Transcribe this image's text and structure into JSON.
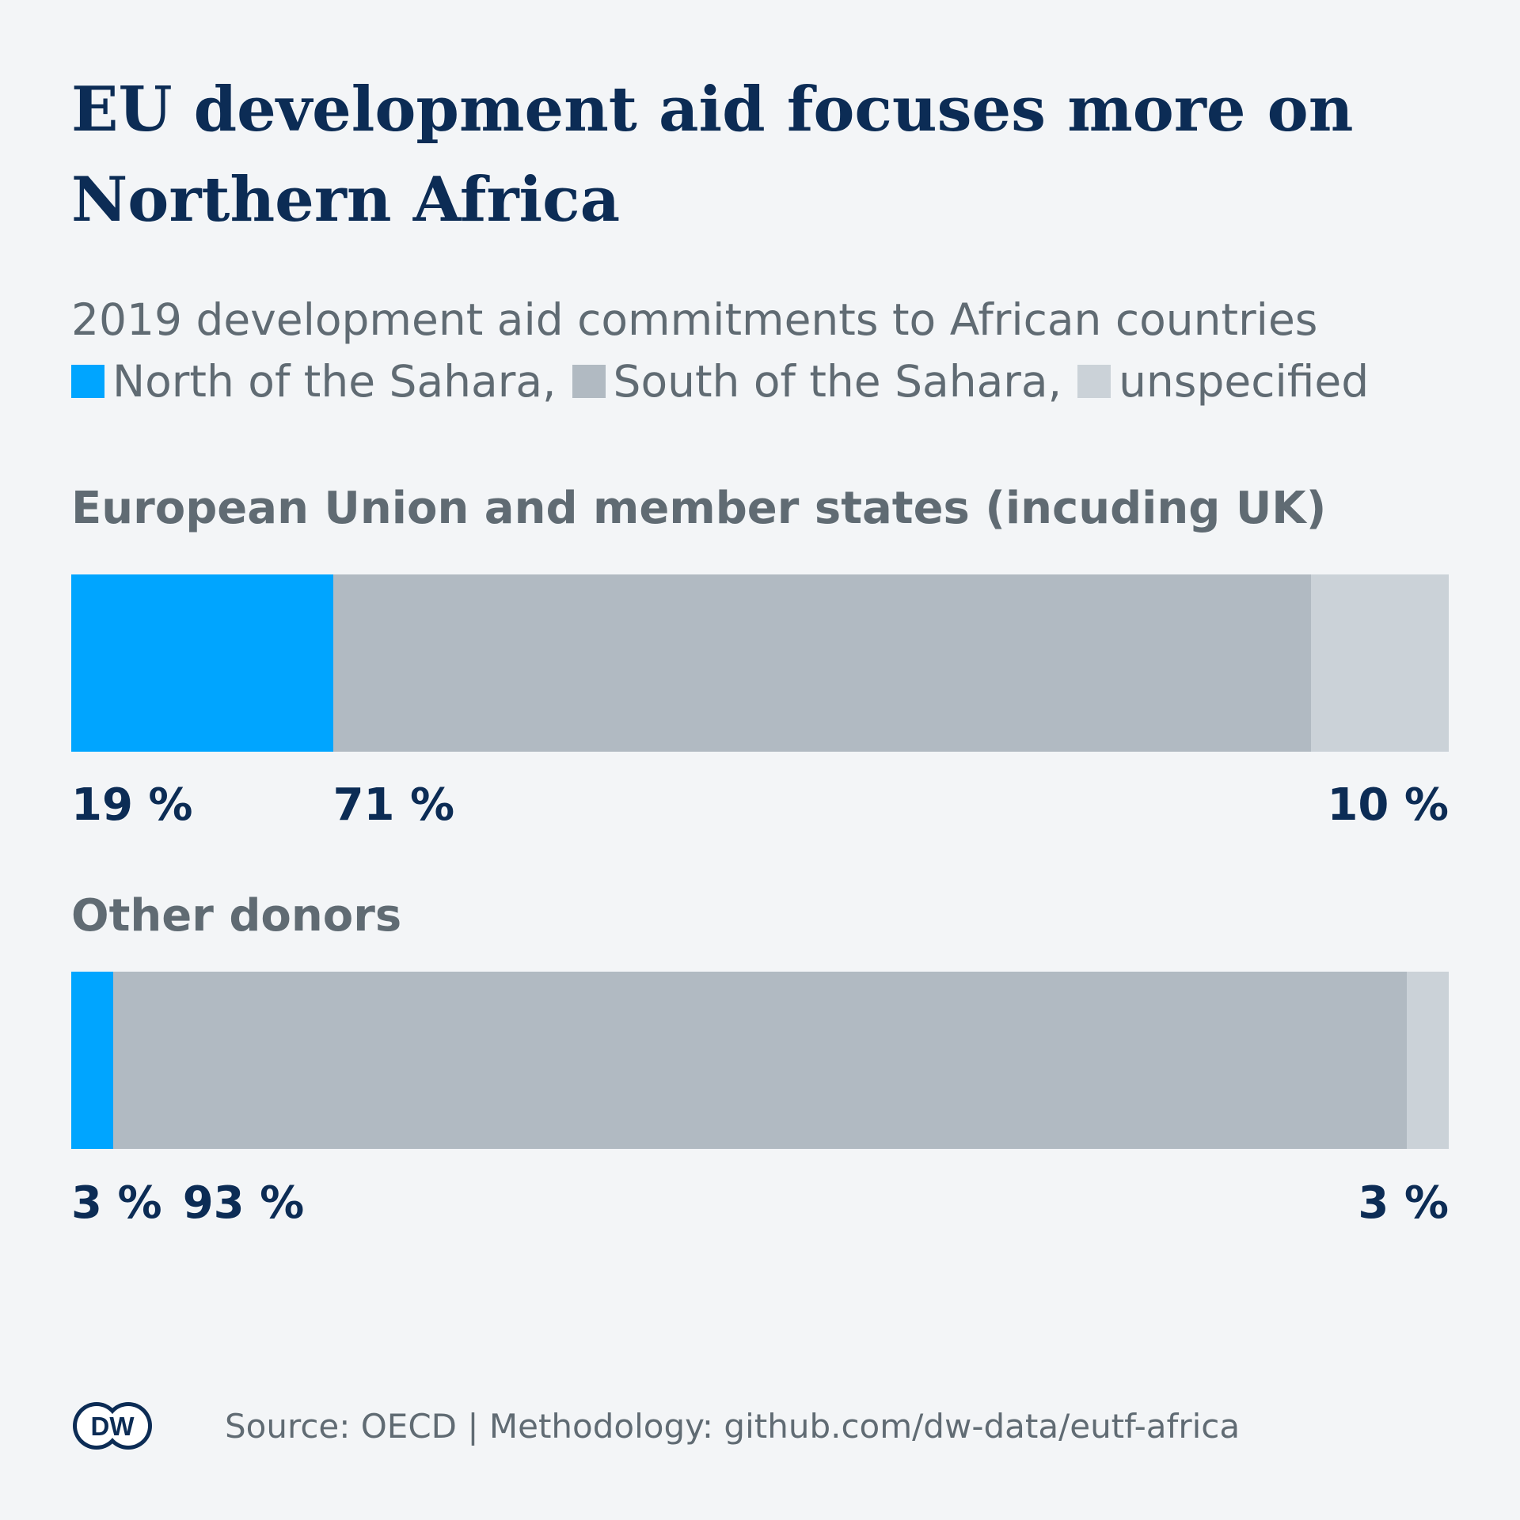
{
  "colors": {
    "north": "#00a5ff",
    "south": "#b1bac2",
    "unspecified": "#cbd2d8",
    "title": "#0c2c55",
    "text": "#606b73"
  },
  "chart_data": {
    "type": "bar",
    "stacked": true,
    "orientation": "horizontal",
    "title": "EU development aid focuses more on Northern Africa",
    "subtitle": "2019 development aid commitments to African countries",
    "legend": [
      {
        "label": "North of the Sahara,",
        "color": "#00a5ff"
      },
      {
        "label": "South of the Sahara,",
        "color": "#b1bac2"
      },
      {
        "label": "unspecified",
        "color": "#cbd2d8"
      }
    ],
    "categories": [
      "European Union and member states (incuding UK)",
      "Other donors"
    ],
    "series": [
      {
        "name": "North of the Sahara",
        "values": [
          19,
          3
        ],
        "labels": [
          "19 %",
          "3 %"
        ]
      },
      {
        "name": "South of the Sahara",
        "values": [
          71,
          93
        ],
        "labels": [
          "71 %",
          "93 %"
        ]
      },
      {
        "name": "unspecified",
        "values": [
          10,
          3
        ],
        "labels": [
          "10 %",
          "3 %"
        ]
      }
    ],
    "unit": "%",
    "xlim": [
      0,
      100
    ]
  },
  "footer": {
    "logo_text": "DW",
    "source": "Source: OECD | Methodology: github.com/dw-data/eutf-africa"
  }
}
